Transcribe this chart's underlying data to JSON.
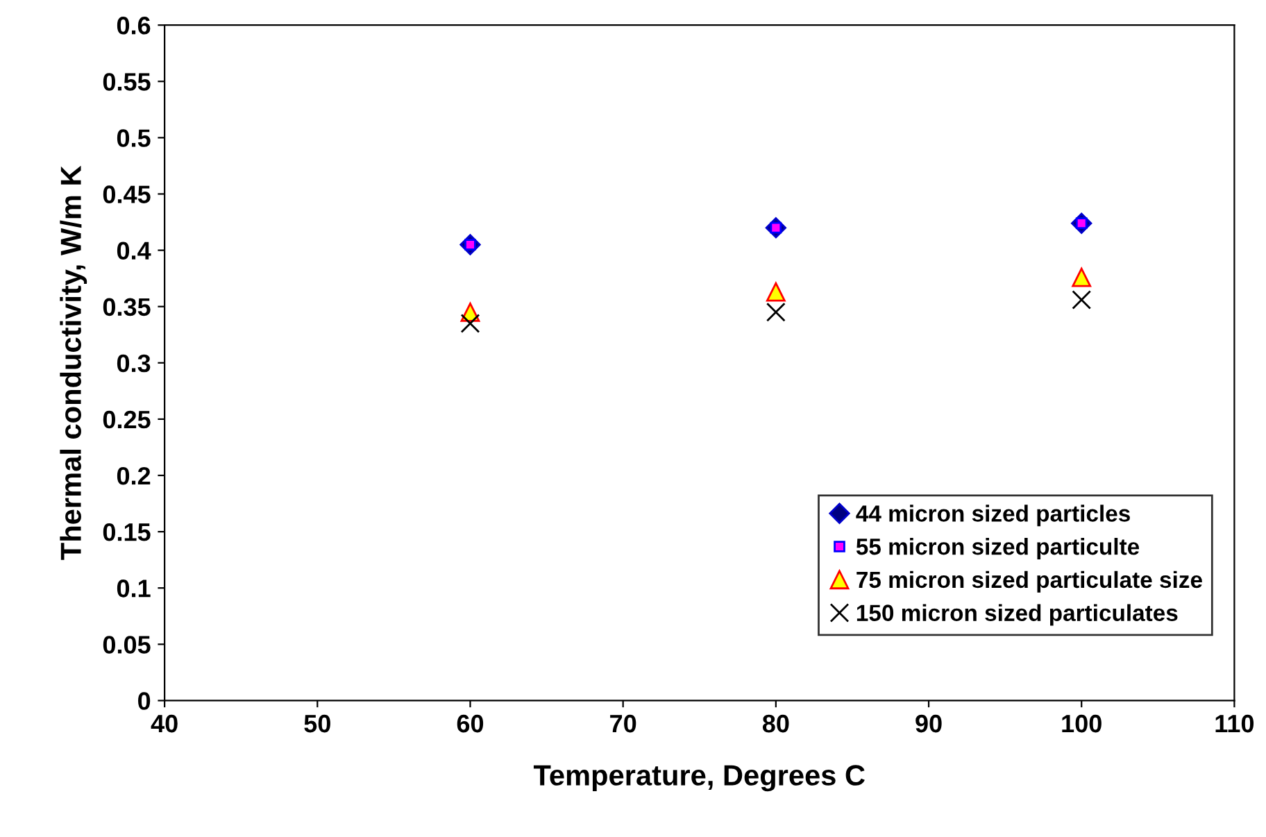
{
  "chart_data": {
    "type": "scatter",
    "xlabel": "Temperature, Degrees C",
    "ylabel": "Thermal conductivity, W/m K",
    "x": [
      60,
      80,
      100
    ],
    "series": [
      {
        "name": "44 micron sized particles",
        "color": "#000080",
        "marker": "diamond",
        "values": [
          0.405,
          0.42,
          0.424
        ]
      },
      {
        "name": "55 micron sized particulte",
        "color": "#ff00ff",
        "marker": "square",
        "values": [
          0.405,
          0.42,
          0.424
        ]
      },
      {
        "name": "75 micron sized particulate size",
        "color": "#ffff00",
        "marker": "triangle",
        "values": [
          0.345,
          0.363,
          0.376
        ]
      },
      {
        "name": "150 micron sized particulates",
        "color": "#000000",
        "marker": "cross",
        "values": [
          0.335,
          0.345,
          0.356
        ]
      }
    ],
    "xlim": [
      40,
      110
    ],
    "xticks": [
      40,
      50,
      60,
      70,
      80,
      90,
      100,
      110
    ],
    "ylim": [
      0,
      0.6
    ],
    "yticks": [
      0,
      0.05,
      0.1,
      0.15,
      0.2,
      0.25,
      0.3,
      0.35,
      0.4,
      0.45,
      0.5,
      0.55,
      0.6
    ],
    "grid": false,
    "legend": "bottom right"
  }
}
